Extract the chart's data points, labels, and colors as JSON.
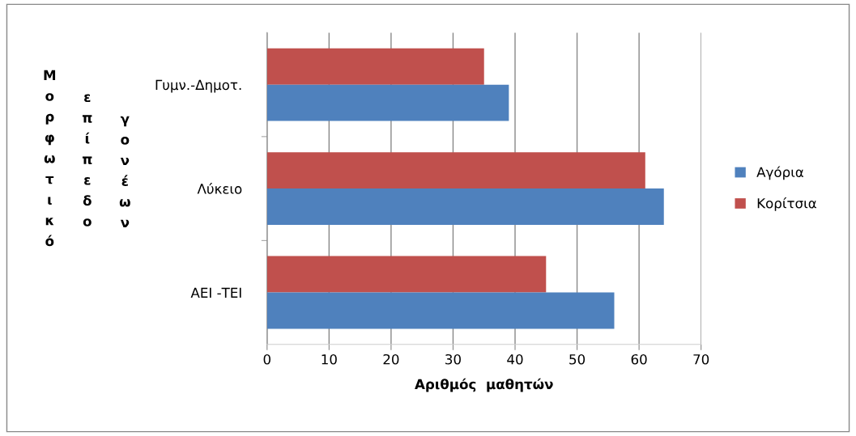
{
  "chart_data": {
    "type": "bar",
    "orientation": "horizontal",
    "xlabel": "Αριθμός  μαθητών",
    "ylabel": "Μορφωτικό επίπεδο γονέων",
    "categories": [
      "Γυμν.-Δημοτ.",
      "Λύκειο",
      "ΑΕΙ -ΤΕΙ"
    ],
    "series": [
      {
        "name": "Κορίτσια",
        "color": "#c0504d",
        "values": [
          35,
          61,
          45
        ]
      },
      {
        "name": "Αγόρια",
        "color": "#4f81bd",
        "values": [
          39,
          64,
          56
        ]
      }
    ],
    "xlim": [
      0,
      70
    ],
    "xticks": [
      0,
      10,
      20,
      30,
      40,
      50,
      60,
      70
    ],
    "grid": "x",
    "legend": "right"
  }
}
